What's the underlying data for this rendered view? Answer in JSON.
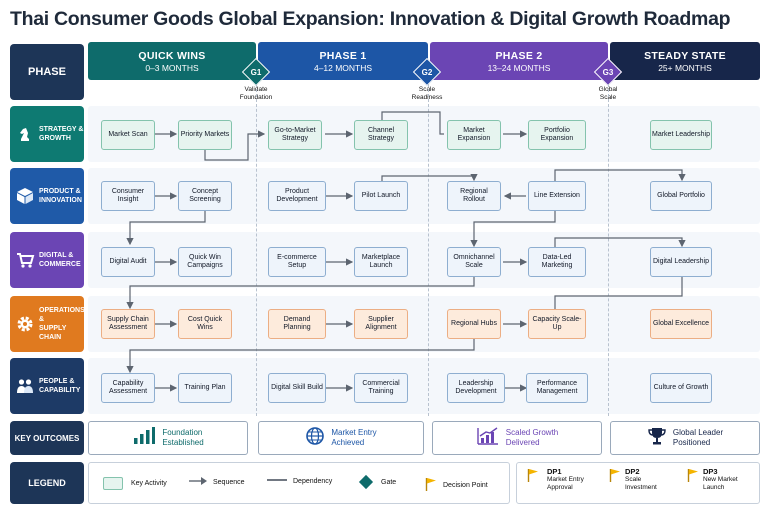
{
  "title": "Thai Consumer Goods Global Expansion: Innovation & Digital Growth Roadmap",
  "phase_header_label": "PHASE",
  "phases": [
    {
      "name": "QUICK WINS",
      "time": "0–3 MONTHS",
      "color": "#0e6b6b"
    },
    {
      "name": "PHASE 1",
      "time": "4–12 MONTHS",
      "color": "#1d56a6"
    },
    {
      "name": "PHASE 2",
      "time": "13–24 MONTHS",
      "color": "#6b45b4"
    },
    {
      "name": "STEADY STATE",
      "time": "25+ MONTHS",
      "color": "#17264a"
    }
  ],
  "gates": [
    {
      "id": "G1",
      "line1": "Validate",
      "line2": "Foundation",
      "color": "#0e6b6b"
    },
    {
      "id": "G2",
      "line1": "Scale",
      "line2": "Readiness",
      "color": "#1d56a6"
    },
    {
      "id": "G3",
      "line1": "Global",
      "line2": "Scale",
      "color": "#6b45b4"
    }
  ],
  "rows": [
    {
      "label_line1": "STRATEGY &",
      "label_line2": "GROWTH",
      "color": "#0e7a72",
      "icon": "chess-knight-icon",
      "activities": [
        [
          "Market Scan",
          "Priority Markets"
        ],
        [
          "Go-to-Market Strategy",
          "Channel Strategy"
        ],
        [
          "Market Expansion",
          "Portfolio Expansion"
        ],
        [
          "Market Leadership"
        ]
      ]
    },
    {
      "label_line1": "PRODUCT &",
      "label_line2": "INNOVATION",
      "color": "#1f5aa8",
      "icon": "box-icon",
      "activities": [
        [
          "Consumer Insight",
          "Concept Screening"
        ],
        [
          "Product Development",
          "Pilot Launch"
        ],
        [
          "Regional Rollout",
          "Line Extension"
        ],
        [
          "Global Portfolio"
        ]
      ]
    },
    {
      "label_line1": "DIGITAL &",
      "label_line2": "COMMERCE",
      "color": "#6b45b4",
      "icon": "cart-icon",
      "activities": [
        [
          "Digital Audit",
          "Quick Win Campaigns"
        ],
        [
          "E-commerce Setup",
          "Marketplace Launch"
        ],
        [
          "Omnichannel Scale",
          "Data-Led Marketing"
        ],
        [
          "Digital Leadership"
        ]
      ]
    },
    {
      "label_line1": "OPERATIONS &",
      "label_line2": "SUPPLY CHAIN",
      "color": "#e07a1f",
      "icon": "gear-icon",
      "activities": [
        [
          "Supply Chain Assessment",
          "Cost Quick Wins"
        ],
        [
          "Demand Planning",
          "Supplier Alignment"
        ],
        [
          "Regional Hubs",
          "Capacity Scale-Up"
        ],
        [
          "Global Excellence"
        ]
      ]
    },
    {
      "label_line1": "PEOPLE &",
      "label_line2": "CAPABILITY",
      "color": "#1d3a66",
      "icon": "people-icon",
      "activities": [
        [
          "Capability Assessment",
          "Training Plan"
        ],
        [
          "Digital Skill Build",
          "Commercial Training"
        ],
        [
          "Leadership Development",
          "Performance Management"
        ],
        [
          "Culture of Growth"
        ]
      ]
    }
  ],
  "key_outcomes_label": "KEY OUTCOMES",
  "outcomes": [
    {
      "line1": "Foundation",
      "line2": "Established",
      "color": "#0e6b6b",
      "icon": "bar-chart-icon"
    },
    {
      "line1": "Market Entry",
      "line2": "Achieved",
      "color": "#1d56a6",
      "icon": "globe-icon"
    },
    {
      "line1": "Scaled Growth",
      "line2": "Delivered",
      "color": "#6b45b4",
      "icon": "growth-chart-icon"
    },
    {
      "line1": "Global Leader",
      "line2": "Positioned",
      "color": "#17264a",
      "icon": "trophy-icon"
    }
  ],
  "legend_label": "LEGEND",
  "legend": {
    "key_activity": "Key Activity",
    "sequence": "Sequence",
    "dependency": "Dependency",
    "gate": "Gate",
    "decision_point": "Decision Point"
  },
  "decision_points": [
    {
      "id": "DP1",
      "line1": "Market Entry",
      "line2": "Approval"
    },
    {
      "id": "DP2",
      "line1": "Scale",
      "line2": "Investment"
    },
    {
      "id": "DP3",
      "line1": "New Market",
      "line2": "Launch"
    }
  ],
  "colors": {
    "navy": "#1d3557",
    "flag": "#f4b400",
    "gate_green": "#0e6b6b"
  }
}
